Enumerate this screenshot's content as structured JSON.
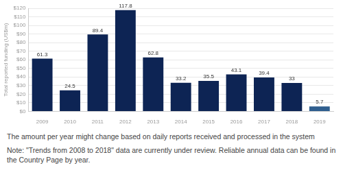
{
  "chart_data": {
    "type": "bar",
    "categories": [
      "2009",
      "2010",
      "2011",
      "2012",
      "2013",
      "2014",
      "2015",
      "2016",
      "2017",
      "2018",
      "2019"
    ],
    "values": [
      61.3,
      24.5,
      89.4,
      117.8,
      62.8,
      33.2,
      35.5,
      43.1,
      39.4,
      33,
      5.7
    ],
    "colors": [
      "#0d2454",
      "#0d2454",
      "#0d2454",
      "#0d2454",
      "#0d2454",
      "#0d2454",
      "#0d2454",
      "#0d2454",
      "#0d2454",
      "#0d2454",
      "#2f5e8e"
    ],
    "y_label": "Total reported funding (US$m)",
    "ylim": [
      0,
      120
    ],
    "yticks": [
      {
        "value": 0,
        "label": "$0"
      },
      {
        "value": 10,
        "label": "$10"
      },
      {
        "value": 20,
        "label": "$20"
      },
      {
        "value": 30,
        "label": "$30"
      },
      {
        "value": 40,
        "label": "$40"
      },
      {
        "value": 50,
        "label": "$50"
      },
      {
        "value": 60,
        "label": "$60"
      },
      {
        "value": 70,
        "label": "$70"
      },
      {
        "value": 80,
        "label": "$80"
      },
      {
        "value": 90,
        "label": "$90"
      },
      {
        "value": 100,
        "label": "$100"
      },
      {
        "value": 110,
        "label": "$110"
      },
      {
        "value": 120,
        "label": "$120"
      }
    ],
    "grid": true,
    "data_labels": true
  },
  "notes": [
    "The amount per year might change based on daily reports received and processed in the system",
    "Note: \"Trends from 2008 to 2018\" data are currently under review. Reliable annual data can be found in the Country Page by year."
  ]
}
